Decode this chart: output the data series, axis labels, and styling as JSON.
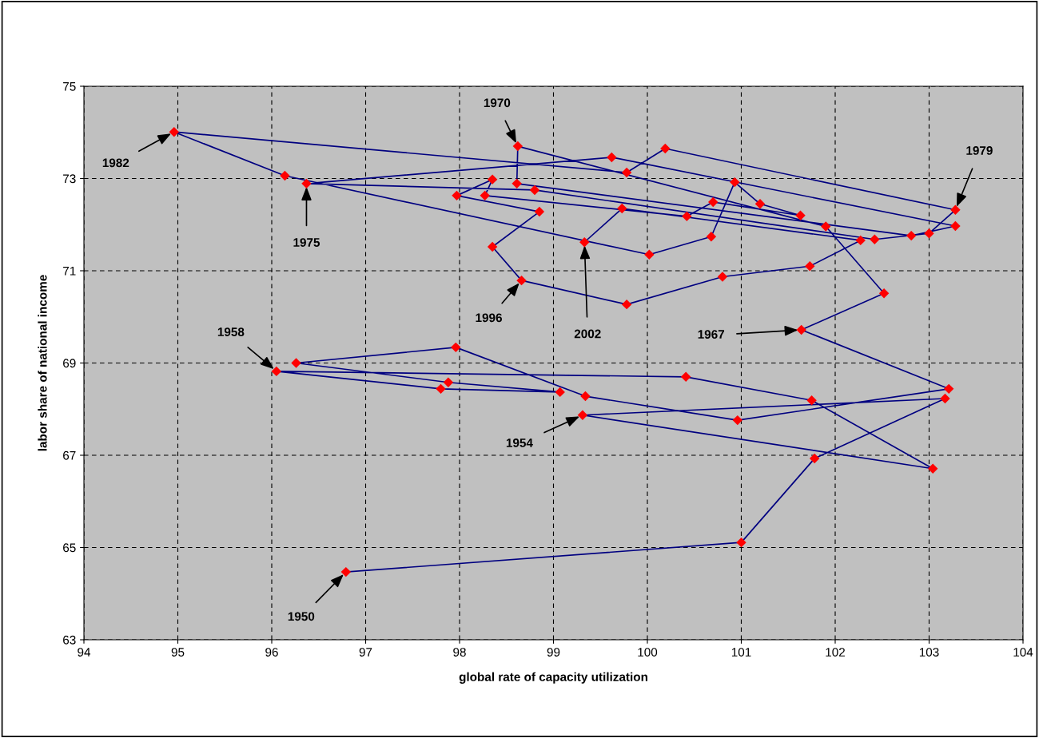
{
  "chart_data": {
    "type": "line",
    "xlabel": "global rate of capacity utilization",
    "ylabel": "labor share of national income",
    "series": [
      {
        "color": "#000080",
        "colors": [
          "#ff0000",
          "#ff0000",
          "#ff0000",
          "#ff0000",
          "#ff0000",
          "#ff0000",
          "#ff0000",
          "#ff0000",
          "#ff0000",
          "#ff0000",
          "#ff0000",
          "#ff0000",
          "#ff0000",
          "#ff0000",
          "#ff0000",
          "#ff0000",
          "#ff0000",
          "#ff0000",
          "#ff0000",
          "#ff0000",
          "#ff0000",
          "#ff0000",
          "#ff0000",
          "#ff0000",
          "#ff0000",
          "#ff0000",
          "#ff0000",
          "#ff0000",
          "#ff0000",
          "#ff0000",
          "#ff0000",
          "#ff0000",
          "#ff0000",
          "#ff0000",
          "#ff0000",
          "#ff0000",
          "#ff0000",
          "#ff0000",
          "#ff0000",
          "#ff0000",
          "#ff0000",
          "#ff0000",
          "#ff0000",
          "#ff0000",
          "#ff0000",
          "#ff0000",
          "#ff0000",
          "#ff0000",
          "#ff0000",
          "#ff0000",
          "#ff0000",
          "#ff0000",
          "#ff0000"
        ],
        "x": [
          96.79,
          101.0,
          101.78,
          103.17,
          99.31,
          103.04,
          101.75,
          100.41,
          96.05,
          97.8,
          99.07,
          97.88,
          96.26,
          97.96,
          99.34,
          100.96,
          103.21,
          101.64,
          102.52,
          101.9,
          98.62,
          98.61,
          102.81,
          103.28,
          99.62,
          96.37,
          98.8,
          102.42,
          103.0,
          103.28,
          100.19,
          99.78,
          94.96,
          96.14,
          100.02,
          100.68,
          100.93,
          101.2,
          101.63,
          100.7,
          100.42,
          98.27,
          98.35,
          97.97,
          98.85,
          98.35,
          98.66,
          99.78,
          100.8,
          101.73,
          102.27,
          99.73,
          99.33
        ],
        "values": [
          64.47,
          65.11,
          66.93,
          68.23,
          67.87,
          66.71,
          68.19,
          68.7,
          68.82,
          68.44,
          68.37,
          68.58,
          69.0,
          69.34,
          68.28,
          67.76,
          68.44,
          69.72,
          70.51,
          71.96,
          73.7,
          72.89,
          71.76,
          71.97,
          73.46,
          72.89,
          72.75,
          71.68,
          71.81,
          72.32,
          73.65,
          73.13,
          74.01,
          73.06,
          71.35,
          71.74,
          72.92,
          72.45,
          72.2,
          72.49,
          72.18,
          72.63,
          72.98,
          72.63,
          72.28,
          71.52,
          70.79,
          70.27,
          70.87,
          71.1,
          71.66,
          72.35,
          71.62
        ]
      }
    ],
    "xlim": [
      94,
      104
    ],
    "xticks": [
      94,
      95,
      96,
      97,
      98,
      99,
      100,
      101,
      102,
      103,
      104
    ],
    "ylim": [
      63,
      75
    ],
    "yticks": [
      63,
      65,
      67,
      69,
      71,
      73,
      75
    ],
    "grid": true,
    "marker": "diamond",
    "line_style": "solid",
    "annotations": [
      {
        "text": "1950",
        "x": 96.79,
        "y": 64.47
      },
      {
        "text": "1954",
        "x": 99.31,
        "y": 67.87
      },
      {
        "text": "1958",
        "x": 96.05,
        "y": 68.82
      },
      {
        "text": "1967",
        "x": 101.64,
        "y": 69.72
      },
      {
        "text": "1970",
        "x": 98.62,
        "y": 73.7
      },
      {
        "text": "1975",
        "x": 96.37,
        "y": 72.89
      },
      {
        "text": "1979",
        "x": 103.28,
        "y": 72.32
      },
      {
        "text": "1982",
        "x": 94.96,
        "y": 74.01
      },
      {
        "text": "1996",
        "x": 98.66,
        "y": 70.79
      },
      {
        "text": "2002",
        "x": 99.33,
        "y": 71.62
      }
    ]
  }
}
